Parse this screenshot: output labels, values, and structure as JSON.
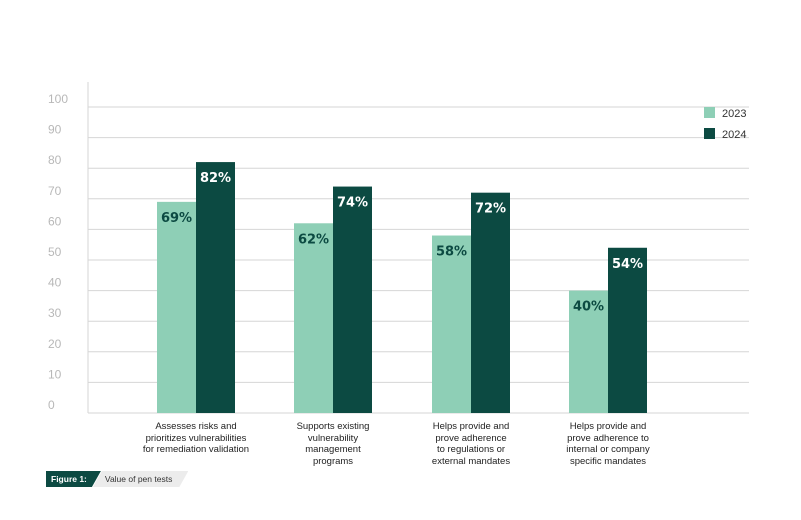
{
  "chart_data": {
    "type": "bar",
    "categories": [
      "Assesses risks and\nprioritizes vulnerabilities\nfor remediation validation",
      "Supports existing\nvulnerability\nmanagement\nprograms",
      "Helps provide and\nprove adherence\nto regulations or\nexternal mandates",
      "Helps provide and\nprove adherence to\ninternal or company\nspecific mandates"
    ],
    "series": [
      {
        "name": "2023",
        "values": [
          69,
          62,
          58,
          40
        ],
        "labels": [
          "69%",
          "62%",
          "58%",
          "40%"
        ],
        "color": "#8ecfb6",
        "label_color": "#0c4a42"
      },
      {
        "name": "2024",
        "values": [
          82,
          74,
          72,
          54
        ],
        "labels": [
          "82%",
          "74%",
          "72%",
          "54%"
        ],
        "color": "#0c4a42",
        "label_color": "#ffffff"
      }
    ],
    "ylim": [
      0,
      100
    ],
    "yticks": [
      "0",
      "10",
      "20",
      "30",
      "40",
      "50",
      "60",
      "70",
      "80",
      "90",
      "100"
    ],
    "grid": true,
    "legend_position": "top-right"
  },
  "figure": {
    "tag": "Figure 1:",
    "caption": "Value of pen tests"
  }
}
